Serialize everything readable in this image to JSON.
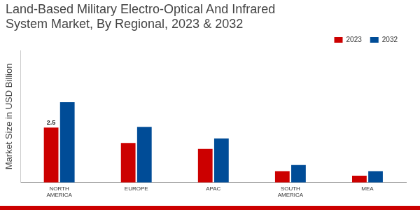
{
  "chart_data": {
    "type": "bar",
    "title": "Land-Based Military Electro-Optical And Infrared System Market, By Regional, 2023 & 2032",
    "ylabel": "Market Size in USD Billion",
    "categories": [
      "NORTH AMERICA",
      "EUROPE",
      "APAC",
      "SOUTH AMERICA",
      "MEA"
    ],
    "series": [
      {
        "name": "2023",
        "color": "#cc0000",
        "values": [
          2.5,
          1.8,
          1.53,
          0.52,
          0.31
        ],
        "value_labels": [
          "2.5",
          null,
          null,
          null,
          null
        ]
      },
      {
        "name": "2032",
        "color": "#004c97",
        "values": [
          3.65,
          2.53,
          2.0,
          0.8,
          0.52
        ]
      }
    ],
    "ylim": [
      0,
      6
    ],
    "legend": "top-right",
    "grid": false,
    "tick_labels": "x"
  }
}
